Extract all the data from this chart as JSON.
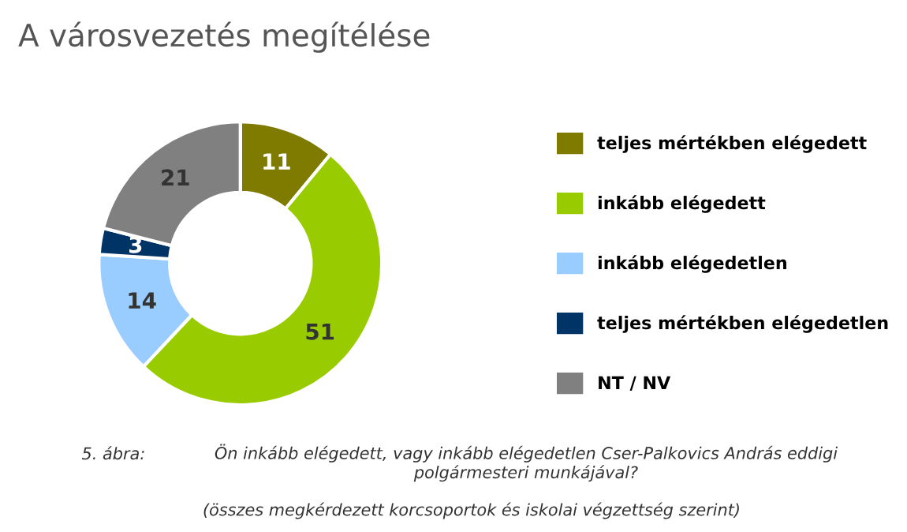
{
  "chart_data": {
    "type": "donut",
    "title": "A városvezetés megítélése",
    "categories": [
      "teljes mértékben elégedett",
      "inkább elégedett",
      "inkább elégedetlen",
      "teljes mértékben elégedetlen",
      "NT / NV"
    ],
    "values": [
      11,
      51,
      14,
      3,
      21
    ],
    "colors": [
      "#7f7a00",
      "#99cc00",
      "#99ccff",
      "#003366",
      "#808080"
    ],
    "data_labels": true,
    "legend": "right",
    "annotations": [
      "5. ábra:",
      "Ön inkább elégedett, vagy inkább elégedetlen Cser-Palkovics András eddigi\npolgármesteri munkájával?",
      "(összes megkérdezett korcsoportok és iskolai végzettség szerint)"
    ]
  }
}
